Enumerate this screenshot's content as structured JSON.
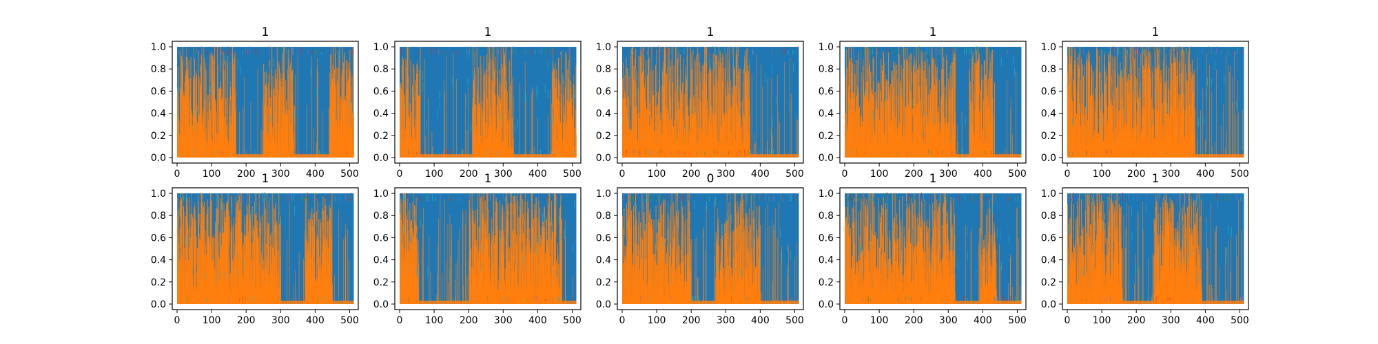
{
  "chart_data": {
    "type": "area",
    "layout": "grid of small multiples, 2 rows x 5 columns",
    "stacked": true,
    "grid": false,
    "legend": "none",
    "xlim": [
      -14,
      525
    ],
    "ylim": [
      -0.05,
      1.05
    ],
    "x_ticks": [
      "0",
      "100",
      "200",
      "300",
      "400",
      "500"
    ],
    "y_ticks": [
      "0.0",
      "0.2",
      "0.4",
      "0.6",
      "0.8",
      "1.0"
    ],
    "series_colors": [
      "#1f77b4",
      "#ff7f0e",
      "#2ca02c",
      "#d62728",
      "#9467bd",
      "#17becf"
    ],
    "panels": [
      {
        "title": "1",
        "orange_regions": [
          [
            0,
            170
          ],
          [
            250,
            340
          ],
          [
            440,
            512
          ]
        ],
        "orange_level": 0.5
      },
      {
        "title": "1",
        "orange_regions": [
          [
            0,
            60
          ],
          [
            210,
            330
          ],
          [
            440,
            512
          ]
        ],
        "orange_level": 0.5
      },
      {
        "title": "1",
        "orange_regions": [
          [
            0,
            370
          ]
        ],
        "orange_level": 0.55
      },
      {
        "title": "1",
        "orange_regions": [
          [
            0,
            320
          ],
          [
            360,
            430
          ]
        ],
        "orange_level": 0.55
      },
      {
        "title": "1",
        "orange_regions": [
          [
            0,
            370
          ]
        ],
        "orange_level": 0.55
      },
      {
        "title": "1",
        "orange_regions": [
          [
            0,
            300
          ],
          [
            370,
            450
          ]
        ],
        "orange_level": 0.55
      },
      {
        "title": "1",
        "orange_regions": [
          [
            0,
            55
          ],
          [
            200,
            470
          ]
        ],
        "orange_level": 0.55
      },
      {
        "title": "0",
        "orange_regions": [
          [
            0,
            200
          ],
          [
            270,
            400
          ]
        ],
        "orange_level": 0.5
      },
      {
        "title": "1",
        "orange_regions": [
          [
            0,
            320
          ],
          [
            390,
            440
          ]
        ],
        "orange_level": 0.55
      },
      {
        "title": "1",
        "orange_regions": [
          [
            0,
            160
          ],
          [
            250,
            390
          ]
        ],
        "orange_level": 0.55
      }
    ]
  }
}
